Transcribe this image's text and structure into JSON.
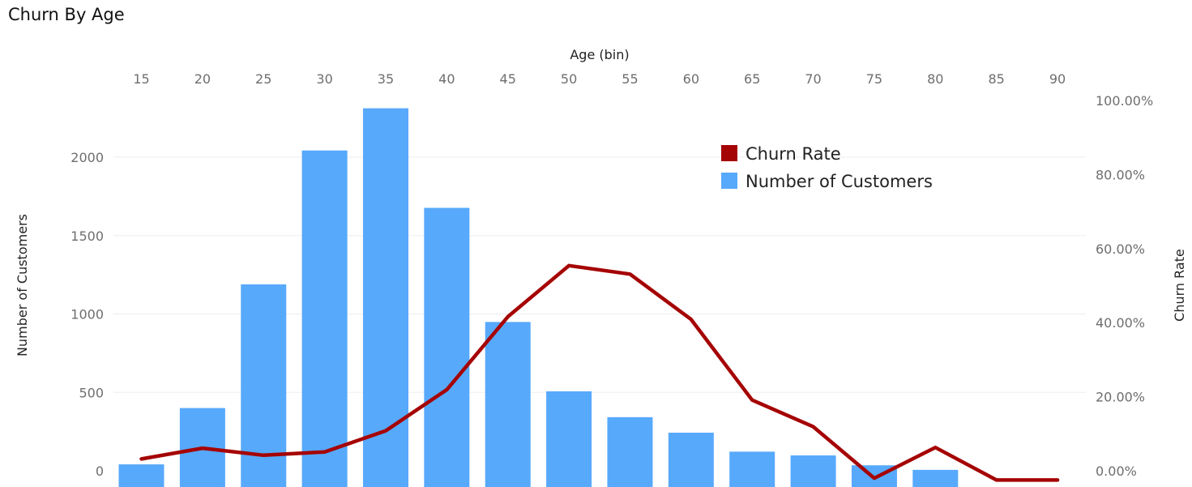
{
  "title": "Churn By Age",
  "chart_data": {
    "type": "bar",
    "xlabel": "Age (bin)",
    "categories": [
      "15",
      "20",
      "25",
      "30",
      "35",
      "40",
      "45",
      "50",
      "55",
      "60",
      "65",
      "70",
      "75",
      "80",
      "85",
      "90"
    ],
    "series": [
      {
        "name": "Number of Customers",
        "type": "bar",
        "axis": "left",
        "color": "#57a9fc",
        "values": [
          41,
          400,
          1189,
          2043,
          2312,
          1677,
          949,
          507,
          342,
          243,
          122,
          98,
          35,
          6,
          0,
          0
        ]
      },
      {
        "name": "Churn Rate",
        "type": "line",
        "axis": "right",
        "color": "#a50404",
        "values": [
          3.2,
          6.1,
          4.2,
          5.1,
          10.8,
          21.9,
          41.6,
          55.4,
          53.1,
          40.9,
          19.1,
          11.9,
          -2.0,
          6.3,
          -2.5,
          -2.5
        ]
      }
    ],
    "ylabel": "Number of Customers",
    "ylim": [
      0,
      2350
    ],
    "yticks": [
      0,
      500,
      1000,
      1500,
      2000
    ],
    "y2label": "Churn Rate",
    "y2lim": [
      0,
      100
    ],
    "y2ticks": [
      "0.00%",
      "20.00%",
      "40.00%",
      "60.00%",
      "80.00%",
      "100.00%"
    ],
    "legend": {
      "position": "top-right",
      "items": [
        "Churn Rate",
        "Number of Customers"
      ]
    },
    "grid": true
  }
}
